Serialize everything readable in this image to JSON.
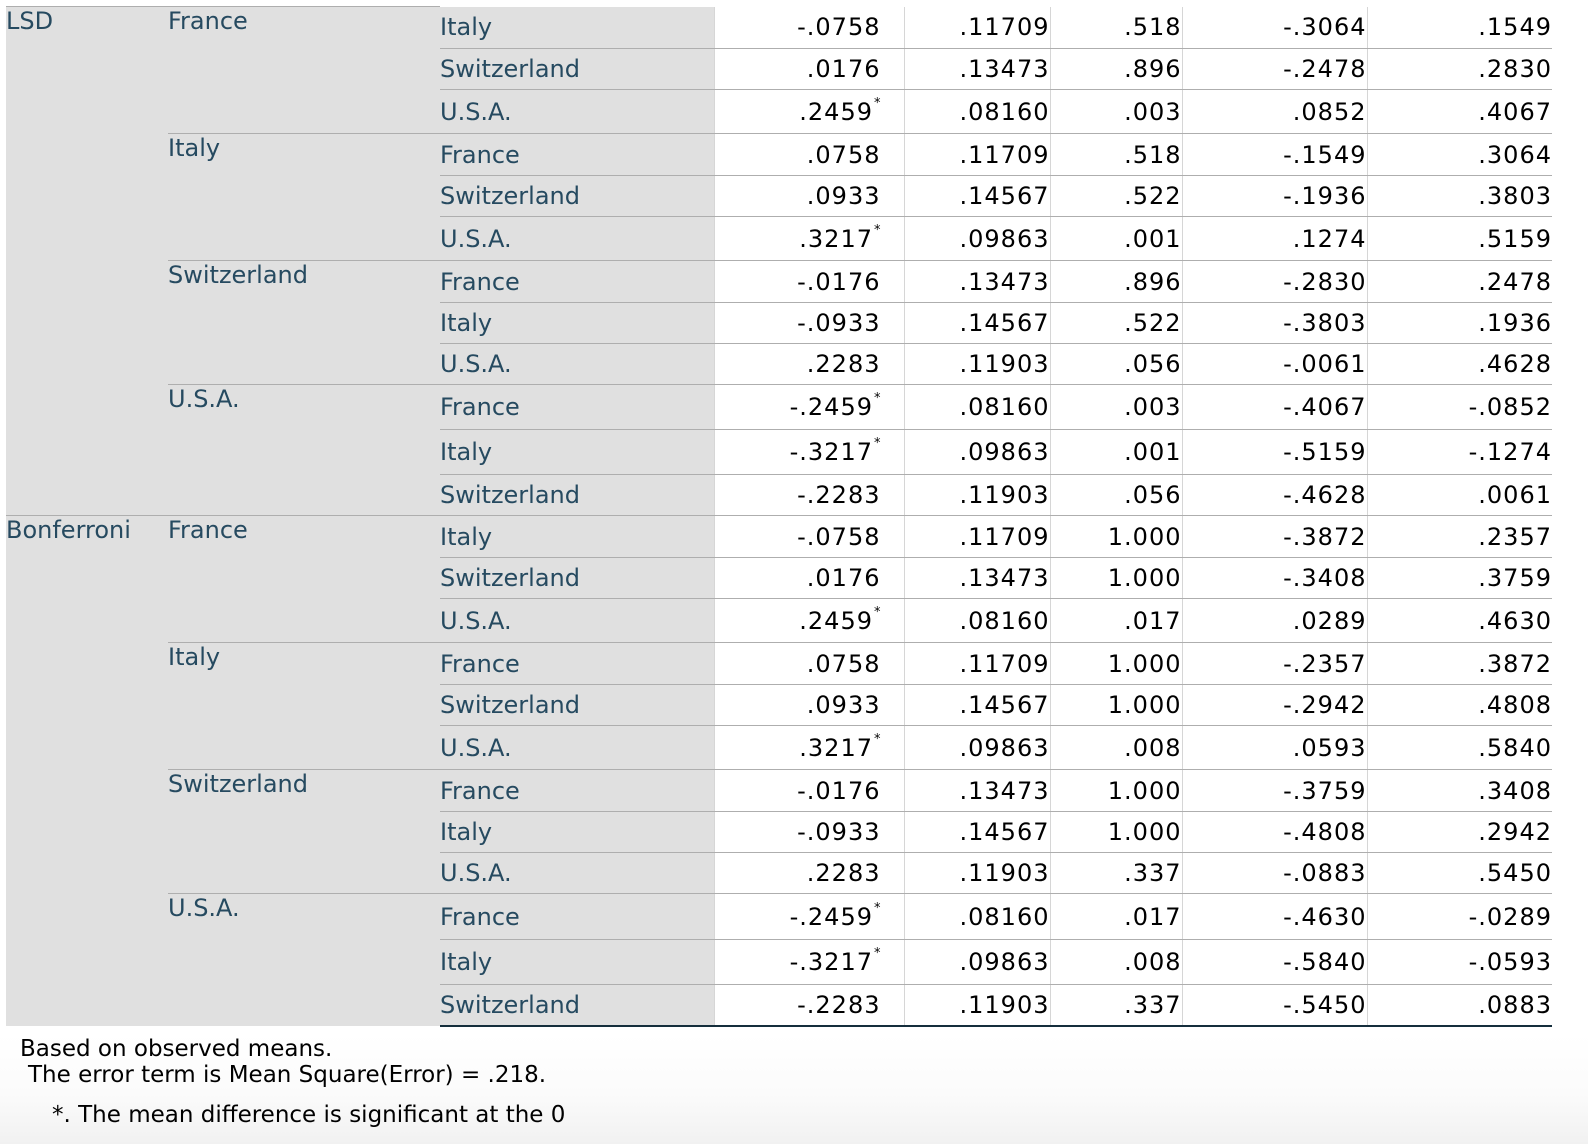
{
  "table": {
    "methods": [
      {
        "name": "LSD",
        "groups": [
          {
            "i": "France",
            "rows": [
              {
                "j": "Italy",
                "md": "-.0758",
                "sig_mark": "",
                "se": ".11709",
                "sig": ".518",
                "lb": "-.3064",
                "ub": ".1549"
              },
              {
                "j": "Switzerland",
                "md": ".0176",
                "sig_mark": "",
                "se": ".13473",
                "sig": ".896",
                "lb": "-.2478",
                "ub": ".2830"
              },
              {
                "j": "U.S.A.",
                "md": ".2459",
                "sig_mark": "*",
                "se": ".08160",
                "sig": ".003",
                "lb": ".0852",
                "ub": ".4067"
              }
            ]
          },
          {
            "i": "Italy",
            "rows": [
              {
                "j": "France",
                "md": ".0758",
                "sig_mark": "",
                "se": ".11709",
                "sig": ".518",
                "lb": "-.1549",
                "ub": ".3064"
              },
              {
                "j": "Switzerland",
                "md": ".0933",
                "sig_mark": "",
                "se": ".14567",
                "sig": ".522",
                "lb": "-.1936",
                "ub": ".3803"
              },
              {
                "j": "U.S.A.",
                "md": ".3217",
                "sig_mark": "*",
                "se": ".09863",
                "sig": ".001",
                "lb": ".1274",
                "ub": ".5159"
              }
            ]
          },
          {
            "i": "Switzerland",
            "rows": [
              {
                "j": "France",
                "md": "-.0176",
                "sig_mark": "",
                "se": ".13473",
                "sig": ".896",
                "lb": "-.2830",
                "ub": ".2478"
              },
              {
                "j": "Italy",
                "md": "-.0933",
                "sig_mark": "",
                "se": ".14567",
                "sig": ".522",
                "lb": "-.3803",
                "ub": ".1936"
              },
              {
                "j": "U.S.A.",
                "md": ".2283",
                "sig_mark": "",
                "se": ".11903",
                "sig": ".056",
                "lb": "-.0061",
                "ub": ".4628"
              }
            ]
          },
          {
            "i": "U.S.A.",
            "rows": [
              {
                "j": "France",
                "md": "-.2459",
                "sig_mark": "*",
                "se": ".08160",
                "sig": ".003",
                "lb": "-.4067",
                "ub": "-.0852"
              },
              {
                "j": "Italy",
                "md": "-.3217",
                "sig_mark": "*",
                "se": ".09863",
                "sig": ".001",
                "lb": "-.5159",
                "ub": "-.1274"
              },
              {
                "j": "Switzerland",
                "md": "-.2283",
                "sig_mark": "",
                "se": ".11903",
                "sig": ".056",
                "lb": "-.4628",
                "ub": ".0061"
              }
            ]
          }
        ]
      },
      {
        "name": "Bonferroni",
        "groups": [
          {
            "i": "France",
            "rows": [
              {
                "j": "Italy",
                "md": "-.0758",
                "sig_mark": "",
                "se": ".11709",
                "sig": "1.000",
                "lb": "-.3872",
                "ub": ".2357"
              },
              {
                "j": "Switzerland",
                "md": ".0176",
                "sig_mark": "",
                "se": ".13473",
                "sig": "1.000",
                "lb": "-.3408",
                "ub": ".3759"
              },
              {
                "j": "U.S.A.",
                "md": ".2459",
                "sig_mark": "*",
                "se": ".08160",
                "sig": ".017",
                "lb": ".0289",
                "ub": ".4630"
              }
            ]
          },
          {
            "i": "Italy",
            "rows": [
              {
                "j": "France",
                "md": ".0758",
                "sig_mark": "",
                "se": ".11709",
                "sig": "1.000",
                "lb": "-.2357",
                "ub": ".3872"
              },
              {
                "j": "Switzerland",
                "md": ".0933",
                "sig_mark": "",
                "se": ".14567",
                "sig": "1.000",
                "lb": "-.2942",
                "ub": ".4808"
              },
              {
                "j": "U.S.A.",
                "md": ".3217",
                "sig_mark": "*",
                "se": ".09863",
                "sig": ".008",
                "lb": ".0593",
                "ub": ".5840"
              }
            ]
          },
          {
            "i": "Switzerland",
            "rows": [
              {
                "j": "France",
                "md": "-.0176",
                "sig_mark": "",
                "se": ".13473",
                "sig": "1.000",
                "lb": "-.3759",
                "ub": ".3408"
              },
              {
                "j": "Italy",
                "md": "-.0933",
                "sig_mark": "",
                "se": ".14567",
                "sig": "1.000",
                "lb": "-.4808",
                "ub": ".2942"
              },
              {
                "j": "U.S.A.",
                "md": ".2283",
                "sig_mark": "",
                "se": ".11903",
                "sig": ".337",
                "lb": "-.0883",
                "ub": ".5450"
              }
            ]
          },
          {
            "i": "U.S.A.",
            "rows": [
              {
                "j": "France",
                "md": "-.2459",
                "sig_mark": "*",
                "se": ".08160",
                "sig": ".017",
                "lb": "-.4630",
                "ub": "-.0289"
              },
              {
                "j": "Italy",
                "md": "-.3217",
                "sig_mark": "*",
                "se": ".09863",
                "sig": ".008",
                "lb": "-.5840",
                "ub": "-.0593"
              },
              {
                "j": "Switzerland",
                "md": "-.2283",
                "sig_mark": "",
                "se": ".11903",
                "sig": ".337",
                "lb": "-.5450",
                "ub": ".0883"
              }
            ]
          }
        ]
      }
    ],
    "row_heights": [
      42,
      41,
      44,
      42,
      41,
      44,
      42,
      41,
      41,
      45,
      45,
      41,
      42,
      41,
      44,
      42,
      41,
      44,
      42,
      41,
      41,
      46,
      45,
      41
    ]
  },
  "footnotes": {
    "line1": "Based on observed means.",
    "line2": "The error term is Mean Square(Error) = .218.",
    "line3": "*. The mean difference is significant at the 0"
  },
  "colors": {
    "label_text": "#264a60",
    "label_bg": "#e0e0e0",
    "grid_line": "#aeaeae"
  }
}
